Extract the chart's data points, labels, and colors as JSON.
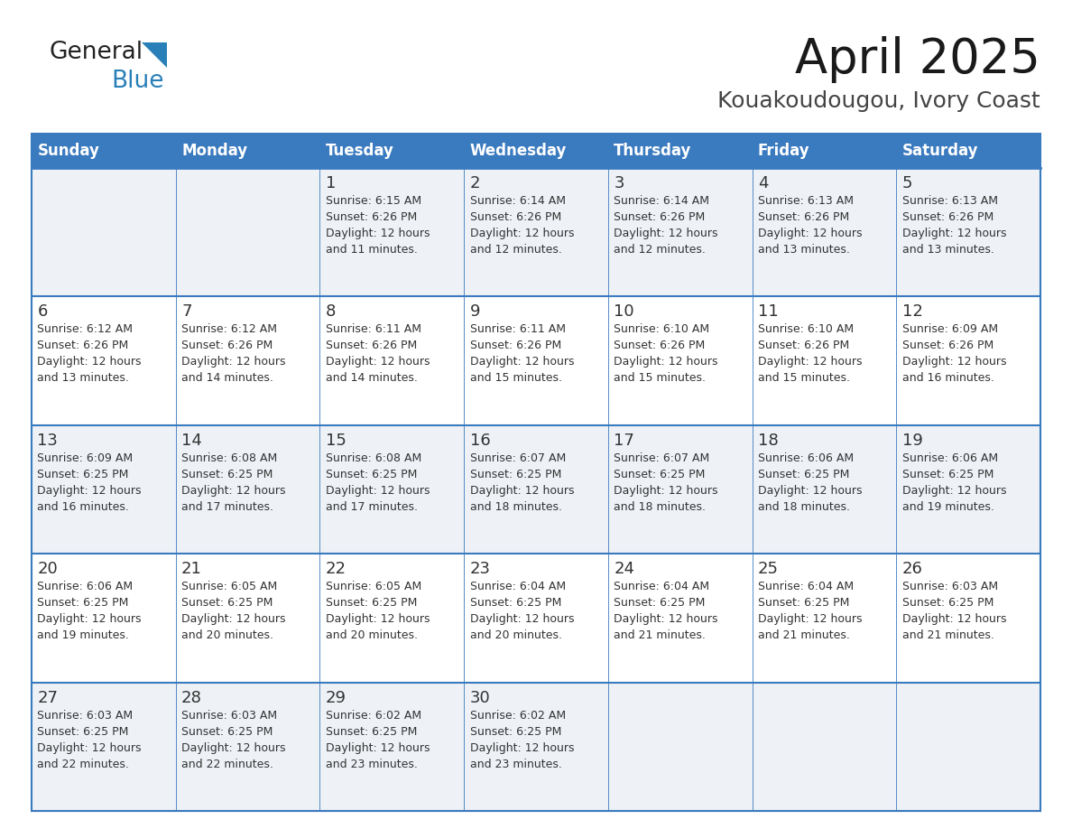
{
  "title": "April 2025",
  "subtitle": "Kouakoudougou, Ivory Coast",
  "header_color": "#3a7abf",
  "header_text_color": "#ffffff",
  "bg_color": "#ffffff",
  "row_color_even": "#eef2f7",
  "row_color_odd": "#ffffff",
  "border_color": "#3a7abf",
  "text_color": "#333333",
  "days_of_week": [
    "Sunday",
    "Monday",
    "Tuesday",
    "Wednesday",
    "Thursday",
    "Friday",
    "Saturday"
  ],
  "weeks": [
    [
      {
        "day": "",
        "sunrise": "",
        "sunset": "",
        "daylight": ""
      },
      {
        "day": "",
        "sunrise": "",
        "sunset": "",
        "daylight": ""
      },
      {
        "day": "1",
        "sunrise": "6:15 AM",
        "sunset": "6:26 PM",
        "daylight": "12 hours and 11 minutes."
      },
      {
        "day": "2",
        "sunrise": "6:14 AM",
        "sunset": "6:26 PM",
        "daylight": "12 hours and 12 minutes."
      },
      {
        "day": "3",
        "sunrise": "6:14 AM",
        "sunset": "6:26 PM",
        "daylight": "12 hours and 12 minutes."
      },
      {
        "day": "4",
        "sunrise": "6:13 AM",
        "sunset": "6:26 PM",
        "daylight": "12 hours and 13 minutes."
      },
      {
        "day": "5",
        "sunrise": "6:13 AM",
        "sunset": "6:26 PM",
        "daylight": "12 hours and 13 minutes."
      }
    ],
    [
      {
        "day": "6",
        "sunrise": "6:12 AM",
        "sunset": "6:26 PM",
        "daylight": "12 hours and 13 minutes."
      },
      {
        "day": "7",
        "sunrise": "6:12 AM",
        "sunset": "6:26 PM",
        "daylight": "12 hours and 14 minutes."
      },
      {
        "day": "8",
        "sunrise": "6:11 AM",
        "sunset": "6:26 PM",
        "daylight": "12 hours and 14 minutes."
      },
      {
        "day": "9",
        "sunrise": "6:11 AM",
        "sunset": "6:26 PM",
        "daylight": "12 hours and 15 minutes."
      },
      {
        "day": "10",
        "sunrise": "6:10 AM",
        "sunset": "6:26 PM",
        "daylight": "12 hours and 15 minutes."
      },
      {
        "day": "11",
        "sunrise": "6:10 AM",
        "sunset": "6:26 PM",
        "daylight": "12 hours and 15 minutes."
      },
      {
        "day": "12",
        "sunrise": "6:09 AM",
        "sunset": "6:26 PM",
        "daylight": "12 hours and 16 minutes."
      }
    ],
    [
      {
        "day": "13",
        "sunrise": "6:09 AM",
        "sunset": "6:25 PM",
        "daylight": "12 hours and 16 minutes."
      },
      {
        "day": "14",
        "sunrise": "6:08 AM",
        "sunset": "6:25 PM",
        "daylight": "12 hours and 17 minutes."
      },
      {
        "day": "15",
        "sunrise": "6:08 AM",
        "sunset": "6:25 PM",
        "daylight": "12 hours and 17 minutes."
      },
      {
        "day": "16",
        "sunrise": "6:07 AM",
        "sunset": "6:25 PM",
        "daylight": "12 hours and 18 minutes."
      },
      {
        "day": "17",
        "sunrise": "6:07 AM",
        "sunset": "6:25 PM",
        "daylight": "12 hours and 18 minutes."
      },
      {
        "day": "18",
        "sunrise": "6:06 AM",
        "sunset": "6:25 PM",
        "daylight": "12 hours and 18 minutes."
      },
      {
        "day": "19",
        "sunrise": "6:06 AM",
        "sunset": "6:25 PM",
        "daylight": "12 hours and 19 minutes."
      }
    ],
    [
      {
        "day": "20",
        "sunrise": "6:06 AM",
        "sunset": "6:25 PM",
        "daylight": "12 hours and 19 minutes."
      },
      {
        "day": "21",
        "sunrise": "6:05 AM",
        "sunset": "6:25 PM",
        "daylight": "12 hours and 20 minutes."
      },
      {
        "day": "22",
        "sunrise": "6:05 AM",
        "sunset": "6:25 PM",
        "daylight": "12 hours and 20 minutes."
      },
      {
        "day": "23",
        "sunrise": "6:04 AM",
        "sunset": "6:25 PM",
        "daylight": "12 hours and 20 minutes."
      },
      {
        "day": "24",
        "sunrise": "6:04 AM",
        "sunset": "6:25 PM",
        "daylight": "12 hours and 21 minutes."
      },
      {
        "day": "25",
        "sunrise": "6:04 AM",
        "sunset": "6:25 PM",
        "daylight": "12 hours and 21 minutes."
      },
      {
        "day": "26",
        "sunrise": "6:03 AM",
        "sunset": "6:25 PM",
        "daylight": "12 hours and 21 minutes."
      }
    ],
    [
      {
        "day": "27",
        "sunrise": "6:03 AM",
        "sunset": "6:25 PM",
        "daylight": "12 hours and 22 minutes."
      },
      {
        "day": "28",
        "sunrise": "6:03 AM",
        "sunset": "6:25 PM",
        "daylight": "12 hours and 22 minutes."
      },
      {
        "day": "29",
        "sunrise": "6:02 AM",
        "sunset": "6:25 PM",
        "daylight": "12 hours and 23 minutes."
      },
      {
        "day": "30",
        "sunrise": "6:02 AM",
        "sunset": "6:25 PM",
        "daylight": "12 hours and 23 minutes."
      },
      {
        "day": "",
        "sunrise": "",
        "sunset": "",
        "daylight": ""
      },
      {
        "day": "",
        "sunrise": "",
        "sunset": "",
        "daylight": ""
      },
      {
        "day": "",
        "sunrise": "",
        "sunset": "",
        "daylight": ""
      }
    ]
  ],
  "logo_text1": "General",
  "logo_text2": "Blue",
  "logo_color1": "#222222",
  "logo_color2": "#2980b9",
  "logo_triangle_color": "#2980b9",
  "title_fontsize": 38,
  "subtitle_fontsize": 18,
  "header_fontsize": 12,
  "day_num_fontsize": 13,
  "cell_text_fontsize": 9
}
